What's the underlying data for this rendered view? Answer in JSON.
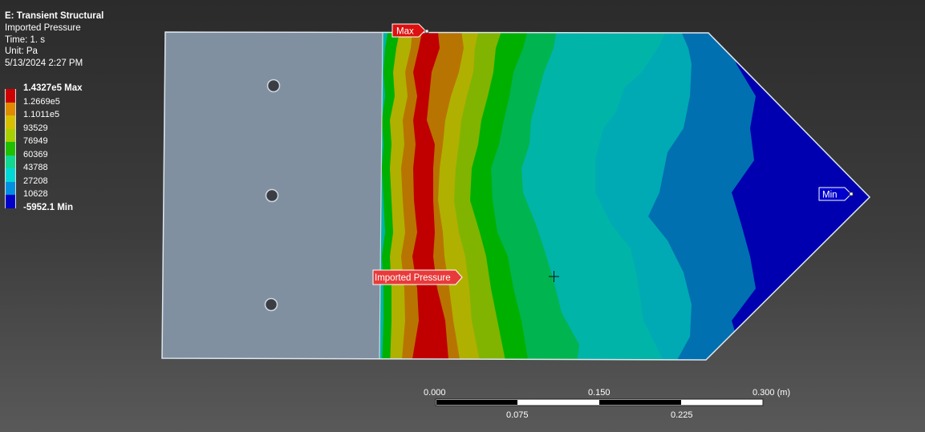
{
  "info": {
    "title": "E: Transient Structural",
    "result": "Imported Pressure",
    "time": "Time: 1. s",
    "unit": "Unit: Pa",
    "timestamp": "5/13/2024 2:27 PM"
  },
  "legend": {
    "items": [
      {
        "label": "1.4327e5 Max",
        "color": "#cc0000",
        "bold": true
      },
      {
        "label": "1.2669e5",
        "color": "#e08a00",
        "bold": false
      },
      {
        "label": "1.1011e5",
        "color": "#d8c000",
        "bold": false
      },
      {
        "label": "93529",
        "color": "#a8d000",
        "bold": false
      },
      {
        "label": "76949",
        "color": "#20c000",
        "bold": false
      },
      {
        "label": "60369",
        "color": "#10d890",
        "bold": false
      },
      {
        "label": "43788",
        "color": "#00d8d8",
        "bold": false
      },
      {
        "label": "27208",
        "color": "#0090e0",
        "bold": false
      },
      {
        "label": "10628",
        "color": "#0000c8",
        "bold": false
      },
      {
        "label": "-5952.1 Min",
        "color": "#0000c8",
        "bold": true
      }
    ]
  },
  "tags": {
    "max": "Max",
    "min": "Min",
    "imported": "Imported Pressure"
  },
  "scale": {
    "top": [
      "0.000",
      "0.150",
      "0.300 (m)"
    ],
    "bottom": [
      "0.075",
      "0.225"
    ]
  },
  "colors": {
    "red": "#c00000",
    "orange": "#b87400",
    "yellow": "#b0b000",
    "yellowgreen": "#80b400",
    "green": "#00b000",
    "green2": "#00b450",
    "teal": "#00b4a8",
    "cyan": "#00aab4",
    "blue": "#0070b0",
    "navy": "#0000b0",
    "body": "#8090a0"
  }
}
